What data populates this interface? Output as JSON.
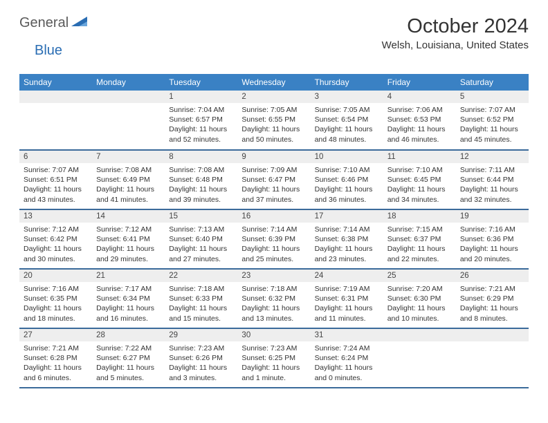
{
  "header": {
    "logo_general": "General",
    "logo_blue": "Blue",
    "title": "October 2024",
    "location": "Welsh, Louisiana, United States"
  },
  "styling": {
    "header_bg": "#3a81c4",
    "header_text": "#ffffff",
    "daynum_bg": "#eeeeee",
    "cell_border": "#3a6a9a",
    "body_font": "Arial",
    "title_fontsize": 29,
    "location_fontsize": 15,
    "dayhead_fontsize": 12,
    "daynum_fontsize": 11.5,
    "data_fontsize": 10.5,
    "logo_general_color": "#5a5a5a",
    "logo_blue_color": "#2a6db3",
    "logo_shape_color": "#2a6db3"
  },
  "calendar": {
    "day_names": [
      "Sunday",
      "Monday",
      "Tuesday",
      "Wednesday",
      "Thursday",
      "Friday",
      "Saturday"
    ],
    "weeks": [
      [
        null,
        null,
        {
          "n": "1",
          "sunrise": "Sunrise: 7:04 AM",
          "sunset": "Sunset: 6:57 PM",
          "day1": "Daylight: 11 hours",
          "day2": "and 52 minutes."
        },
        {
          "n": "2",
          "sunrise": "Sunrise: 7:05 AM",
          "sunset": "Sunset: 6:55 PM",
          "day1": "Daylight: 11 hours",
          "day2": "and 50 minutes."
        },
        {
          "n": "3",
          "sunrise": "Sunrise: 7:05 AM",
          "sunset": "Sunset: 6:54 PM",
          "day1": "Daylight: 11 hours",
          "day2": "and 48 minutes."
        },
        {
          "n": "4",
          "sunrise": "Sunrise: 7:06 AM",
          "sunset": "Sunset: 6:53 PM",
          "day1": "Daylight: 11 hours",
          "day2": "and 46 minutes."
        },
        {
          "n": "5",
          "sunrise": "Sunrise: 7:07 AM",
          "sunset": "Sunset: 6:52 PM",
          "day1": "Daylight: 11 hours",
          "day2": "and 45 minutes."
        }
      ],
      [
        {
          "n": "6",
          "sunrise": "Sunrise: 7:07 AM",
          "sunset": "Sunset: 6:51 PM",
          "day1": "Daylight: 11 hours",
          "day2": "and 43 minutes."
        },
        {
          "n": "7",
          "sunrise": "Sunrise: 7:08 AM",
          "sunset": "Sunset: 6:49 PM",
          "day1": "Daylight: 11 hours",
          "day2": "and 41 minutes."
        },
        {
          "n": "8",
          "sunrise": "Sunrise: 7:08 AM",
          "sunset": "Sunset: 6:48 PM",
          "day1": "Daylight: 11 hours",
          "day2": "and 39 minutes."
        },
        {
          "n": "9",
          "sunrise": "Sunrise: 7:09 AM",
          "sunset": "Sunset: 6:47 PM",
          "day1": "Daylight: 11 hours",
          "day2": "and 37 minutes."
        },
        {
          "n": "10",
          "sunrise": "Sunrise: 7:10 AM",
          "sunset": "Sunset: 6:46 PM",
          "day1": "Daylight: 11 hours",
          "day2": "and 36 minutes."
        },
        {
          "n": "11",
          "sunrise": "Sunrise: 7:10 AM",
          "sunset": "Sunset: 6:45 PM",
          "day1": "Daylight: 11 hours",
          "day2": "and 34 minutes."
        },
        {
          "n": "12",
          "sunrise": "Sunrise: 7:11 AM",
          "sunset": "Sunset: 6:44 PM",
          "day1": "Daylight: 11 hours",
          "day2": "and 32 minutes."
        }
      ],
      [
        {
          "n": "13",
          "sunrise": "Sunrise: 7:12 AM",
          "sunset": "Sunset: 6:42 PM",
          "day1": "Daylight: 11 hours",
          "day2": "and 30 minutes."
        },
        {
          "n": "14",
          "sunrise": "Sunrise: 7:12 AM",
          "sunset": "Sunset: 6:41 PM",
          "day1": "Daylight: 11 hours",
          "day2": "and 29 minutes."
        },
        {
          "n": "15",
          "sunrise": "Sunrise: 7:13 AM",
          "sunset": "Sunset: 6:40 PM",
          "day1": "Daylight: 11 hours",
          "day2": "and 27 minutes."
        },
        {
          "n": "16",
          "sunrise": "Sunrise: 7:14 AM",
          "sunset": "Sunset: 6:39 PM",
          "day1": "Daylight: 11 hours",
          "day2": "and 25 minutes."
        },
        {
          "n": "17",
          "sunrise": "Sunrise: 7:14 AM",
          "sunset": "Sunset: 6:38 PM",
          "day1": "Daylight: 11 hours",
          "day2": "and 23 minutes."
        },
        {
          "n": "18",
          "sunrise": "Sunrise: 7:15 AM",
          "sunset": "Sunset: 6:37 PM",
          "day1": "Daylight: 11 hours",
          "day2": "and 22 minutes."
        },
        {
          "n": "19",
          "sunrise": "Sunrise: 7:16 AM",
          "sunset": "Sunset: 6:36 PM",
          "day1": "Daylight: 11 hours",
          "day2": "and 20 minutes."
        }
      ],
      [
        {
          "n": "20",
          "sunrise": "Sunrise: 7:16 AM",
          "sunset": "Sunset: 6:35 PM",
          "day1": "Daylight: 11 hours",
          "day2": "and 18 minutes."
        },
        {
          "n": "21",
          "sunrise": "Sunrise: 7:17 AM",
          "sunset": "Sunset: 6:34 PM",
          "day1": "Daylight: 11 hours",
          "day2": "and 16 minutes."
        },
        {
          "n": "22",
          "sunrise": "Sunrise: 7:18 AM",
          "sunset": "Sunset: 6:33 PM",
          "day1": "Daylight: 11 hours",
          "day2": "and 15 minutes."
        },
        {
          "n": "23",
          "sunrise": "Sunrise: 7:18 AM",
          "sunset": "Sunset: 6:32 PM",
          "day1": "Daylight: 11 hours",
          "day2": "and 13 minutes."
        },
        {
          "n": "24",
          "sunrise": "Sunrise: 7:19 AM",
          "sunset": "Sunset: 6:31 PM",
          "day1": "Daylight: 11 hours",
          "day2": "and 11 minutes."
        },
        {
          "n": "25",
          "sunrise": "Sunrise: 7:20 AM",
          "sunset": "Sunset: 6:30 PM",
          "day1": "Daylight: 11 hours",
          "day2": "and 10 minutes."
        },
        {
          "n": "26",
          "sunrise": "Sunrise: 7:21 AM",
          "sunset": "Sunset: 6:29 PM",
          "day1": "Daylight: 11 hours",
          "day2": "and 8 minutes."
        }
      ],
      [
        {
          "n": "27",
          "sunrise": "Sunrise: 7:21 AM",
          "sunset": "Sunset: 6:28 PM",
          "day1": "Daylight: 11 hours",
          "day2": "and 6 minutes."
        },
        {
          "n": "28",
          "sunrise": "Sunrise: 7:22 AM",
          "sunset": "Sunset: 6:27 PM",
          "day1": "Daylight: 11 hours",
          "day2": "and 5 minutes."
        },
        {
          "n": "29",
          "sunrise": "Sunrise: 7:23 AM",
          "sunset": "Sunset: 6:26 PM",
          "day1": "Daylight: 11 hours",
          "day2": "and 3 minutes."
        },
        {
          "n": "30",
          "sunrise": "Sunrise: 7:23 AM",
          "sunset": "Sunset: 6:25 PM",
          "day1": "Daylight: 11 hours",
          "day2": "and 1 minute."
        },
        {
          "n": "31",
          "sunrise": "Sunrise: 7:24 AM",
          "sunset": "Sunset: 6:24 PM",
          "day1": "Daylight: 11 hours",
          "day2": "and 0 minutes."
        },
        null,
        null
      ]
    ]
  }
}
